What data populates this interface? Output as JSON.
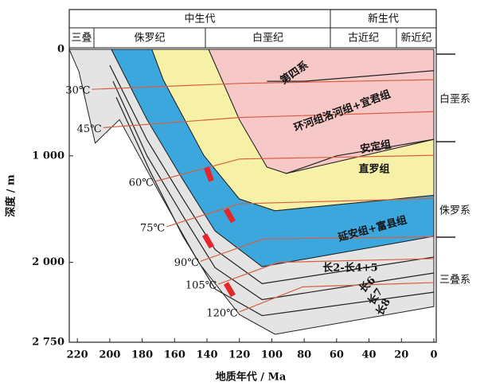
{
  "chart_data": {
    "type": "burial-history",
    "x_label": "地质年代 / Ma",
    "y_label": "深度 / m",
    "xlim": [
      225,
      0
    ],
    "ylim": [
      0,
      2750
    ],
    "xticks": [
      220,
      200,
      180,
      160,
      140,
      120,
      100,
      80,
      60,
      40,
      20,
      0
    ],
    "yticks": [
      0,
      {
        "value": 1000,
        "label": "1 000"
      },
      {
        "value": 2000,
        "label": "2 000"
      },
      {
        "value": 2750,
        "label": "2 750"
      }
    ],
    "eras": [
      "中生代",
      "新生代"
    ],
    "periods": [
      "三叠",
      "侏罗纪",
      "白垩纪",
      "古近纪",
      "新近纪"
    ],
    "systems": [
      "白垩系",
      "侏罗系",
      "三叠系"
    ],
    "layers": [
      {
        "color": "#e4e4e4",
        "x": [
          225,
          199,
          177,
          155,
          135,
          106,
          0,
          0,
          98,
          120,
          145,
          170,
          194,
          209,
          219,
          225
        ],
        "y": [
          0,
          0,
          660,
          1220,
          1705,
          2040,
          1755,
          2415,
          2675,
          2490,
          2005,
          1330,
          660,
          880,
          210,
          0
        ]
      },
      {
        "color": "#3ba7dd",
        "x": [
          199,
          174,
          167,
          142,
          120,
          98,
          0,
          0,
          106,
          135,
          155,
          177
        ],
        "y": [
          0,
          0,
          285,
          995,
          1405,
          1515,
          1370,
          1755,
          2040,
          1705,
          1220,
          660
        ]
      },
      {
        "color": "#f6f1a6",
        "x": [
          174,
          139,
          120,
          103,
          91,
          0,
          0,
          98,
          120,
          142,
          167
        ],
        "y": [
          0,
          0,
          660,
          1105,
          1165,
          845,
          1370,
          1515,
          1405,
          995,
          285
        ]
      },
      {
        "color": "#f6c8c8",
        "x": [
          139,
          0,
          0,
          91,
          103,
          120
        ],
        "y": [
          0,
          0,
          845,
          1165,
          1105,
          660
        ]
      }
    ],
    "horizons": [
      {
        "x": [
          200,
          177,
          155,
          135,
          106,
          0
        ],
        "y": [
          150,
          850,
          1400,
          1880,
          2200,
          1950
        ]
      },
      {
        "x": [
          198,
          177,
          155,
          135,
          106,
          0
        ],
        "y": [
          300,
          1000,
          1560,
          2050,
          2350,
          2100
        ]
      },
      {
        "x": [
          196,
          175,
          155,
          135,
          106,
          0
        ],
        "y": [
          450,
          1150,
          1750,
          2250,
          2500,
          2280
        ]
      },
      {
        "x": [
          91,
          60,
          0
        ],
        "y": [
          1165,
          1000,
          845
        ]
      },
      {
        "x": [
          103,
          80,
          0
        ],
        "y": [
          300,
          300,
          200
        ]
      }
    ],
    "isotherm_color": "#d9603f",
    "isotherms": [
      {
        "label": "30℃",
        "x": [
          211,
          120,
          0
        ],
        "y": [
          375,
          320,
          285
        ]
      },
      {
        "label": "45℃",
        "x": [
          204,
          120,
          0
        ],
        "y": [
          735,
          640,
          585
        ]
      },
      {
        "label": "60℃",
        "x": [
          172,
          120,
          0
        ],
        "y": [
          1240,
          1030,
          995
        ]
      },
      {
        "label": "75℃",
        "x": [
          165,
          120,
          0
        ],
        "y": [
          1665,
          1450,
          1400
        ]
      },
      {
        "label": "90℃",
        "x": [
          144,
          105,
          0
        ],
        "y": [
          1990,
          1780,
          1760
        ]
      },
      {
        "label": "105℃",
        "x": [
          133,
          96,
          0
        ],
        "y": [
          2205,
          2000,
          1965
        ]
      },
      {
        "label": "120℃",
        "x": [
          120,
          81,
          0
        ],
        "y": [
          2465,
          2230,
          2190
        ]
      }
    ],
    "annotations": [
      "第四系",
      "环河组洛河组+宜君组",
      "安定组",
      "直罗组",
      "延安组+富县组",
      "长2-长4+5",
      "长6",
      "长7",
      "长8"
    ]
  }
}
